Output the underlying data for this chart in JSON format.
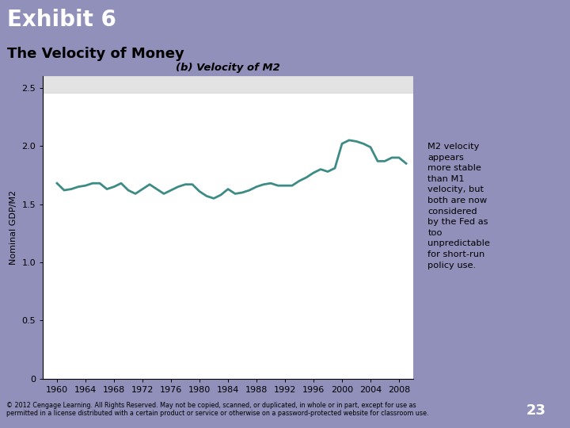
{
  "title_exhibit": "Exhibit 6",
  "title_subtitle": "The Velocity of Money",
  "chart_title": "(b) Velocity of M2",
  "ylabel": "Nominal GDP/M2",
  "line_color": "#3d8b85",
  "line_width": 2.0,
  "bg_color_teal": "#2ab0b0",
  "bg_color_lavender": "#9090bb",
  "bg_color_chart_outer": "#f0ece0",
  "bg_color_annotation": "#ede8dc",
  "bg_color_right_strip": "#b0b8cc",
  "annotation_text": "M2 velocity\nappears\nmore stable\nthan M1\nvelocity, but\nboth are now\nconsidered\nby the Fed as\ntoo\nunpredictable\nfor short-run\npolicy use.",
  "footer_text": "© 2012 Cengage Learning. All Rights Reserved. May not be copied, scanned, or duplicated, in whole or in part, except for use as\npermitted in a license distributed with a certain product or service or otherwise on a password-protected website for classroom use.",
  "page_number": "23",
  "years": [
    1960,
    1961,
    1962,
    1963,
    1964,
    1965,
    1966,
    1967,
    1968,
    1969,
    1970,
    1971,
    1972,
    1973,
    1974,
    1975,
    1976,
    1977,
    1978,
    1979,
    1980,
    1981,
    1982,
    1983,
    1984,
    1985,
    1986,
    1987,
    1988,
    1989,
    1990,
    1991,
    1992,
    1993,
    1994,
    1995,
    1996,
    1997,
    1998,
    1999,
    2000,
    2001,
    2002,
    2003,
    2004,
    2005,
    2006,
    2007,
    2008,
    2009
  ],
  "values": [
    1.68,
    1.62,
    1.63,
    1.65,
    1.66,
    1.68,
    1.68,
    1.63,
    1.65,
    1.68,
    1.62,
    1.59,
    1.63,
    1.67,
    1.63,
    1.59,
    1.62,
    1.65,
    1.67,
    1.67,
    1.61,
    1.57,
    1.55,
    1.58,
    1.63,
    1.59,
    1.6,
    1.62,
    1.65,
    1.67,
    1.68,
    1.66,
    1.66,
    1.66,
    1.7,
    1.73,
    1.77,
    1.8,
    1.78,
    1.81,
    2.02,
    2.05,
    2.04,
    2.02,
    1.99,
    1.87,
    1.87,
    1.9,
    1.9,
    1.85
  ],
  "ylim": [
    0,
    2.6
  ],
  "yticks": [
    0,
    0.5,
    1.0,
    1.5,
    2.0,
    2.5
  ],
  "ytick_labels": [
    "0",
    "0.5",
    "1.0",
    "1.5",
    "2.0",
    "2.5"
  ],
  "xticks": [
    1960,
    1964,
    1968,
    1972,
    1976,
    1980,
    1984,
    1988,
    1992,
    1996,
    2000,
    2004,
    2008
  ]
}
